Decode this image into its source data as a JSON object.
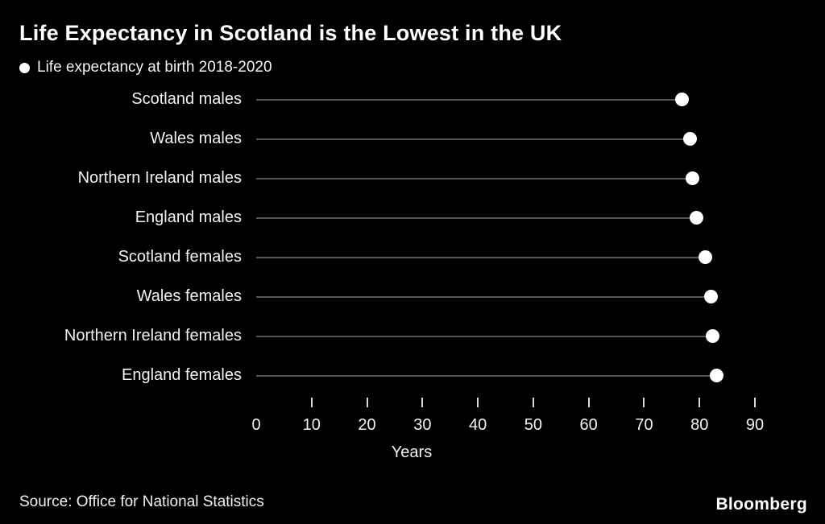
{
  "header": {
    "title": "Life Expectancy in Scotland is the Lowest in the UK",
    "legend_label": "Life expectancy at birth 2018-2020"
  },
  "chart_data": {
    "type": "scatter",
    "title": "Life Expectancy in Scotland is the Lowest in the UK",
    "legend": "Life expectancy at birth 2018-2020",
    "categories": [
      "Scotland males",
      "Wales males",
      "Northern Ireland males",
      "England males",
      "Scotland females",
      "Wales females",
      "Northern Ireland females",
      "England females"
    ],
    "values": [
      76.8,
      78.3,
      78.7,
      79.4,
      81.0,
      82.1,
      82.4,
      83.1
    ],
    "xlabel": "Years",
    "xlim": [
      0,
      90
    ],
    "tick_labels": [
      0,
      10,
      20,
      30,
      40,
      50,
      60,
      70,
      80,
      90
    ],
    "tick_marks": [
      10,
      20,
      30,
      40,
      50,
      60,
      70,
      80,
      90
    ],
    "grid": false,
    "legend_position": "top-left",
    "colors": {
      "background": "#000000",
      "dot": "#ffffff",
      "line": "#565656",
      "text": "#ffffff"
    }
  },
  "footer": {
    "source": "Source: Office for National Statistics",
    "brand": "Bloomberg"
  }
}
